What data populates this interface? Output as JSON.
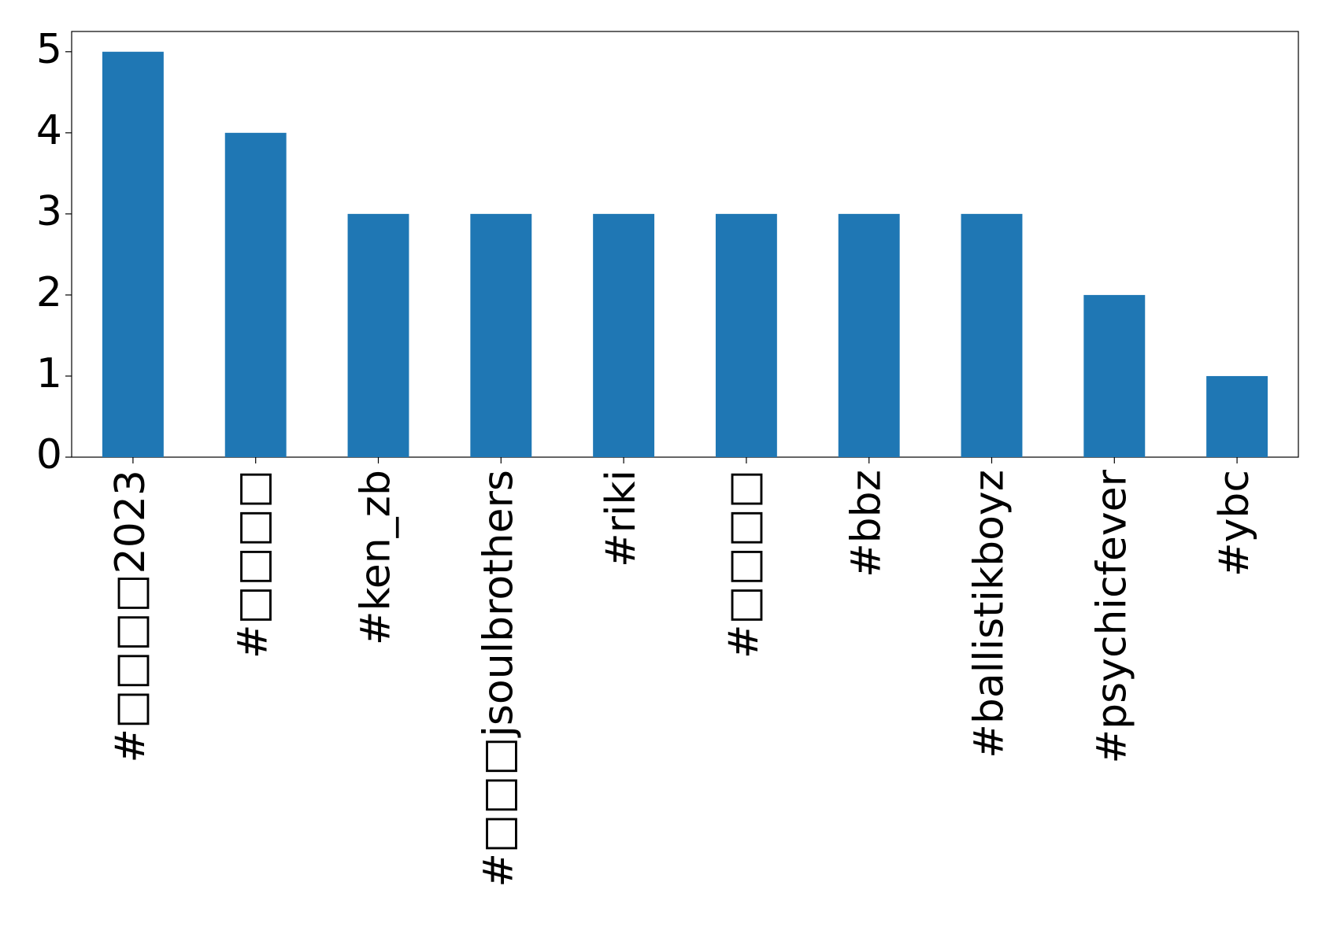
{
  "chart_data": {
    "type": "bar",
    "categories": [
      "#□□□□2023",
      "#□□□□",
      "#ken_zb",
      "#□□□jsoulbrothers",
      "#riki",
      "#□□□□",
      "#bbz",
      "#ballistikboyz",
      "#psychicfever",
      "#ybc"
    ],
    "values": [
      5,
      4,
      3,
      3,
      3,
      3,
      3,
      3,
      2,
      1
    ],
    "color": "#1f77b4",
    "ylim": [
      0,
      5.25
    ],
    "yticks": [
      0,
      1,
      2,
      3,
      4,
      5
    ],
    "grid": false
  }
}
